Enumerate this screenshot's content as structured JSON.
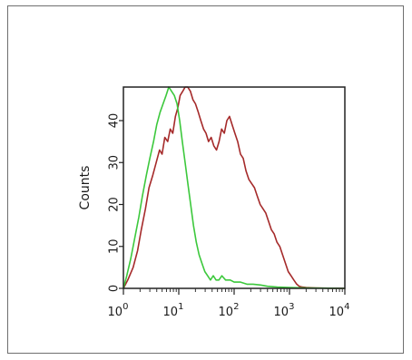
{
  "chart_data": {
    "type": "line",
    "title": "",
    "xlabel": "",
    "ylabel": "Counts",
    "x_scale": "log",
    "xlim": [
      1,
      10000
    ],
    "ylim": [
      0,
      48
    ],
    "x_ticks": [
      {
        "base": "10",
        "exp": "0"
      },
      {
        "base": "10",
        "exp": "1"
      },
      {
        "base": "10",
        "exp": "2"
      },
      {
        "base": "10",
        "exp": "3"
      },
      {
        "base": "10",
        "exp": "4"
      }
    ],
    "y_ticks": [
      "0",
      "10",
      "20",
      "30",
      "40"
    ],
    "grid": false,
    "legend": "none",
    "series": [
      {
        "color": "#a52a2a",
        "x": [
          1,
          1.2,
          1.5,
          1.8,
          2.1,
          2.5,
          2.9,
          3.4,
          3.9,
          4.5,
          5.0,
          5.6,
          6.3,
          7.0,
          7.8,
          8.7,
          9.6,
          10.6,
          11.8,
          13.0,
          14.5,
          16.2,
          18.0,
          20.0,
          22.5,
          25.0,
          28.0,
          31.0,
          34.5,
          38.5,
          43.0,
          48.0,
          53.5,
          59.5,
          66.5,
          74.0,
          82.5,
          92.0,
          103,
          116,
          130,
          146,
          164,
          184,
          207,
          233,
          262,
          295,
          331,
          372,
          418,
          470,
          528,
          593,
          667,
          750,
          843,
          947,
          1065,
          1200,
          1350,
          1500,
          1700,
          2000,
          3000,
          5000,
          10000
        ],
        "y": [
          0,
          2,
          5,
          9,
          14,
          19,
          24,
          27,
          30,
          33,
          32,
          36,
          35,
          38,
          37,
          41,
          43,
          46,
          47,
          49,
          48,
          47,
          45,
          44,
          42,
          40,
          38,
          37,
          35,
          36,
          34,
          33,
          35,
          38,
          37,
          40,
          41,
          39,
          37,
          35,
          32,
          31,
          28,
          26,
          25,
          24,
          22,
          20,
          19,
          18,
          16,
          14,
          13,
          11,
          10,
          8,
          6,
          4,
          3,
          2,
          1,
          0.5,
          0.3,
          0.2,
          0.1,
          0.05,
          0
        ]
      },
      {
        "color": "#3cc83c",
        "x": [
          1,
          1.15,
          1.35,
          1.6,
          1.9,
          2.2,
          2.6,
          3.0,
          3.5,
          4.0,
          4.6,
          5.2,
          5.9,
          6.6,
          7.4,
          8.3,
          9.3,
          10.4,
          11.6,
          13.0,
          14.6,
          16.4,
          18.4,
          20.7,
          23.3,
          26.2,
          29.5,
          33.2,
          37.3,
          42.0,
          47.2,
          53.1,
          60.0,
          70.0,
          85.0,
          100,
          130,
          170,
          220,
          300,
          400,
          600,
          1000,
          2000,
          5000,
          10000
        ],
        "y": [
          0,
          3,
          7,
          12,
          17,
          22,
          27,
          31,
          35,
          39,
          42,
          44,
          46,
          48,
          47,
          46,
          44,
          40,
          35,
          30,
          25,
          20,
          15,
          11,
          8,
          6,
          4,
          3,
          2,
          3,
          2,
          2,
          3,
          2,
          2,
          1.5,
          1.5,
          1,
          1,
          0.8,
          0.5,
          0.3,
          0.2,
          0.1,
          0.05,
          0
        ]
      }
    ]
  }
}
